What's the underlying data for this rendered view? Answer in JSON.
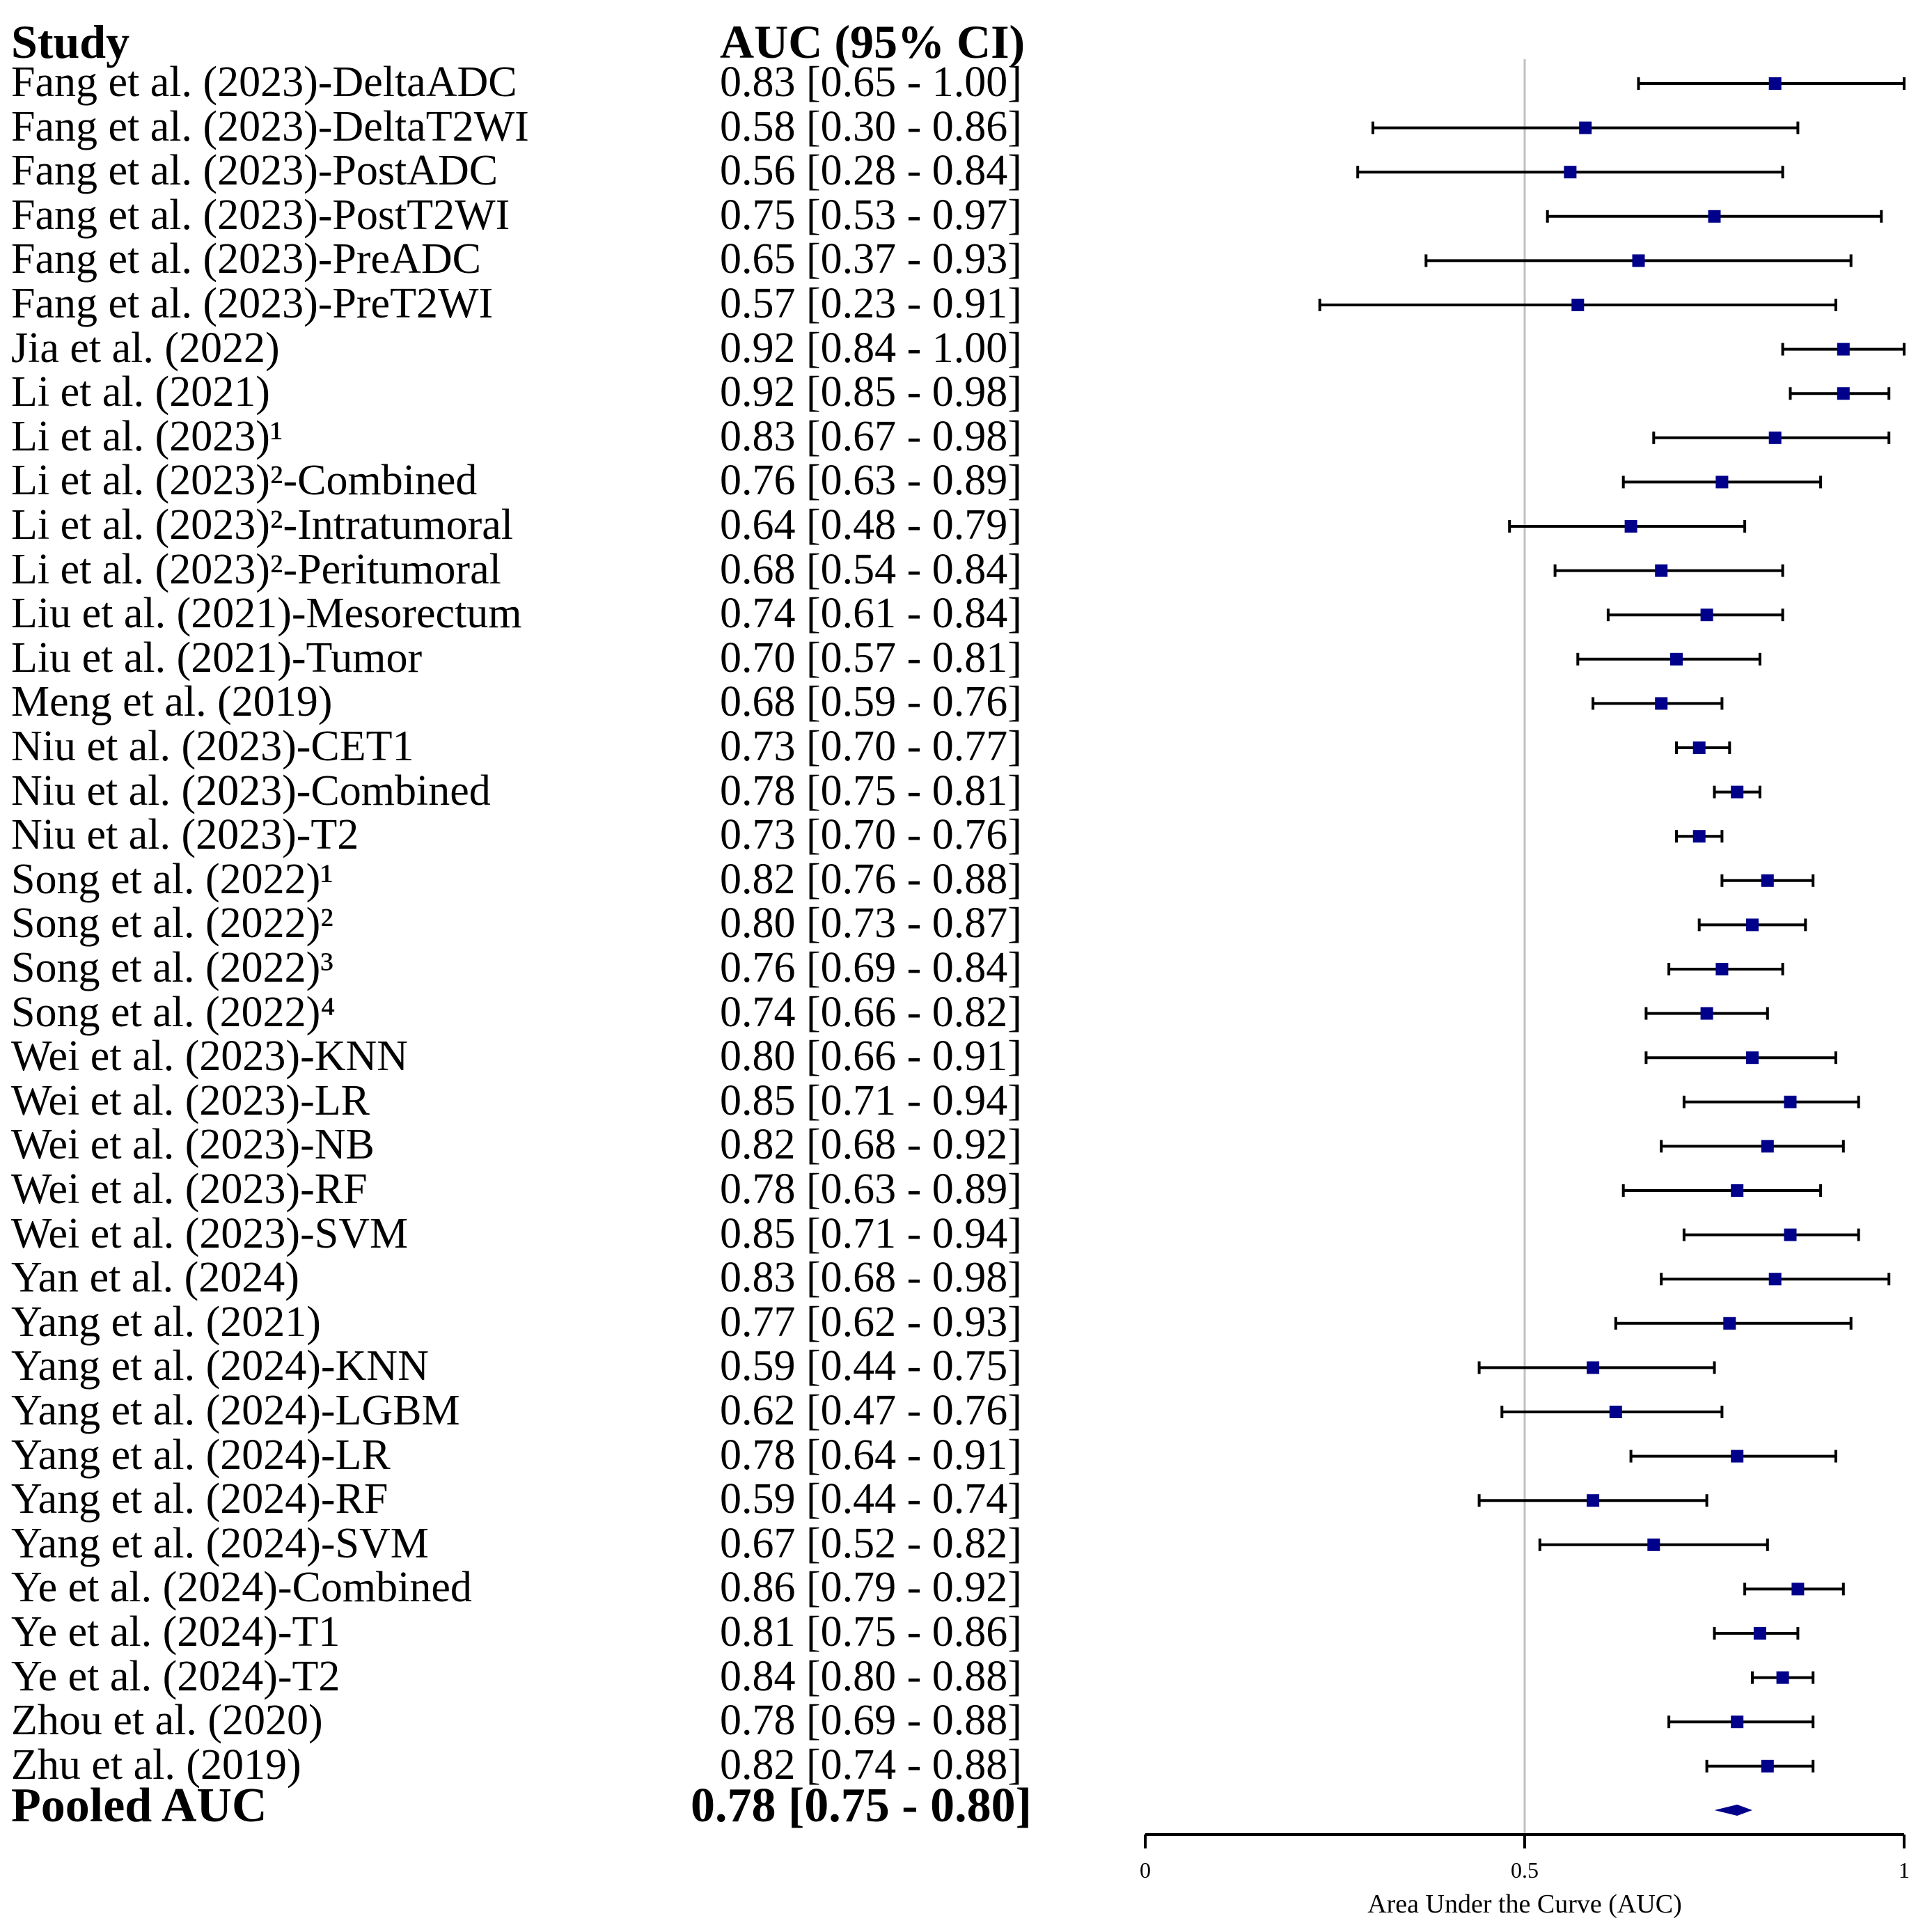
{
  "chart_data": {
    "type": "forest",
    "columns": {
      "study": "Study",
      "auc": "AUC (95% CI)"
    },
    "xlabel": "Area Under the Curve (AUC)",
    "xlim": [
      0,
      1
    ],
    "xticks": [
      "0",
      "0.5",
      "1"
    ],
    "reference_line": 0.5,
    "studies": [
      {
        "label": "Fang et al. (2023)-DeltaADC",
        "auc": 0.83,
        "lo": 0.65,
        "hi": 1.0,
        "text": "0.83 [0.65 - 1.00]"
      },
      {
        "label": "Fang et al. (2023)-DeltaT2WI",
        "auc": 0.58,
        "lo": 0.3,
        "hi": 0.86,
        "text": "0.58 [0.30 - 0.86]"
      },
      {
        "label": "Fang et al. (2023)-PostADC",
        "auc": 0.56,
        "lo": 0.28,
        "hi": 0.84,
        "text": "0.56 [0.28 - 0.84]"
      },
      {
        "label": "Fang et al. (2023)-PostT2WI",
        "auc": 0.75,
        "lo": 0.53,
        "hi": 0.97,
        "text": "0.75 [0.53 - 0.97]"
      },
      {
        "label": "Fang et al. (2023)-PreADC",
        "auc": 0.65,
        "lo": 0.37,
        "hi": 0.93,
        "text": "0.65 [0.37 - 0.93]"
      },
      {
        "label": "Fang et al. (2023)-PreT2WI",
        "auc": 0.57,
        "lo": 0.23,
        "hi": 0.91,
        "text": "0.57 [0.23 - 0.91]"
      },
      {
        "label": "Jia et al. (2022)",
        "auc": 0.92,
        "lo": 0.84,
        "hi": 1.0,
        "text": "0.92 [0.84 - 1.00]"
      },
      {
        "label": "Li et al. (2021)",
        "auc": 0.92,
        "lo": 0.85,
        "hi": 0.98,
        "text": "0.92 [0.85 - 0.98]"
      },
      {
        "label": "Li et al. (2023)¹",
        "auc": 0.83,
        "lo": 0.67,
        "hi": 0.98,
        "text": "0.83 [0.67 - 0.98]"
      },
      {
        "label": "Li et al. (2023)²-Combined",
        "auc": 0.76,
        "lo": 0.63,
        "hi": 0.89,
        "text": "0.76 [0.63 - 0.89]"
      },
      {
        "label": "Li et al. (2023)²-Intratumoral",
        "auc": 0.64,
        "lo": 0.48,
        "hi": 0.79,
        "text": "0.64 [0.48 - 0.79]"
      },
      {
        "label": "Li et al. (2023)²-Peritumoral",
        "auc": 0.68,
        "lo": 0.54,
        "hi": 0.84,
        "text": "0.68 [0.54 - 0.84]"
      },
      {
        "label": "Liu et al. (2021)-Mesorectum",
        "auc": 0.74,
        "lo": 0.61,
        "hi": 0.84,
        "text": "0.74 [0.61 - 0.84]"
      },
      {
        "label": "Liu et al. (2021)-Tumor",
        "auc": 0.7,
        "lo": 0.57,
        "hi": 0.81,
        "text": "0.70 [0.57 - 0.81]"
      },
      {
        "label": "Meng et al. (2019)",
        "auc": 0.68,
        "lo": 0.59,
        "hi": 0.76,
        "text": "0.68 [0.59 - 0.76]"
      },
      {
        "label": "Niu et al. (2023)-CET1",
        "auc": 0.73,
        "lo": 0.7,
        "hi": 0.77,
        "text": "0.73 [0.70 - 0.77]"
      },
      {
        "label": "Niu et al. (2023)-Combined",
        "auc": 0.78,
        "lo": 0.75,
        "hi": 0.81,
        "text": "0.78 [0.75 - 0.81]"
      },
      {
        "label": "Niu et al. (2023)-T2",
        "auc": 0.73,
        "lo": 0.7,
        "hi": 0.76,
        "text": "0.73 [0.70 - 0.76]"
      },
      {
        "label": "Song et al. (2022)¹",
        "auc": 0.82,
        "lo": 0.76,
        "hi": 0.88,
        "text": "0.82 [0.76 - 0.88]"
      },
      {
        "label": "Song et al. (2022)²",
        "auc": 0.8,
        "lo": 0.73,
        "hi": 0.87,
        "text": "0.80 [0.73 - 0.87]"
      },
      {
        "label": "Song et al. (2022)³",
        "auc": 0.76,
        "lo": 0.69,
        "hi": 0.84,
        "text": "0.76 [0.69 - 0.84]"
      },
      {
        "label": "Song et al. (2022)⁴",
        "auc": 0.74,
        "lo": 0.66,
        "hi": 0.82,
        "text": "0.74 [0.66 - 0.82]"
      },
      {
        "label": "Wei et al. (2023)-KNN",
        "auc": 0.8,
        "lo": 0.66,
        "hi": 0.91,
        "text": "0.80 [0.66 - 0.91]"
      },
      {
        "label": "Wei et al. (2023)-LR",
        "auc": 0.85,
        "lo": 0.71,
        "hi": 0.94,
        "text": "0.85 [0.71 - 0.94]"
      },
      {
        "label": "Wei et al. (2023)-NB",
        "auc": 0.82,
        "lo": 0.68,
        "hi": 0.92,
        "text": "0.82 [0.68 - 0.92]"
      },
      {
        "label": "Wei et al. (2023)-RF",
        "auc": 0.78,
        "lo": 0.63,
        "hi": 0.89,
        "text": "0.78 [0.63 - 0.89]"
      },
      {
        "label": "Wei et al. (2023)-SVM",
        "auc": 0.85,
        "lo": 0.71,
        "hi": 0.94,
        "text": "0.85 [0.71 - 0.94]"
      },
      {
        "label": "Yan et al. (2024)",
        "auc": 0.83,
        "lo": 0.68,
        "hi": 0.98,
        "text": "0.83 [0.68 - 0.98]"
      },
      {
        "label": "Yang et al. (2021)",
        "auc": 0.77,
        "lo": 0.62,
        "hi": 0.93,
        "text": "0.77 [0.62 - 0.93]"
      },
      {
        "label": "Yang et al. (2024)-KNN",
        "auc": 0.59,
        "lo": 0.44,
        "hi": 0.75,
        "text": "0.59 [0.44 - 0.75]"
      },
      {
        "label": "Yang et al. (2024)-LGBM",
        "auc": 0.62,
        "lo": 0.47,
        "hi": 0.76,
        "text": "0.62 [0.47 - 0.76]"
      },
      {
        "label": "Yang et al. (2024)-LR",
        "auc": 0.78,
        "lo": 0.64,
        "hi": 0.91,
        "text": "0.78 [0.64 - 0.91]"
      },
      {
        "label": "Yang et al. (2024)-RF",
        "auc": 0.59,
        "lo": 0.44,
        "hi": 0.74,
        "text": "0.59 [0.44 - 0.74]"
      },
      {
        "label": "Yang et al. (2024)-SVM",
        "auc": 0.67,
        "lo": 0.52,
        "hi": 0.82,
        "text": "0.67 [0.52 - 0.82]"
      },
      {
        "label": "Ye et al. (2024)-Combined",
        "auc": 0.86,
        "lo": 0.79,
        "hi": 0.92,
        "text": "0.86 [0.79 - 0.92]"
      },
      {
        "label": "Ye et al. (2024)-T1",
        "auc": 0.81,
        "lo": 0.75,
        "hi": 0.86,
        "text": "0.81 [0.75 - 0.86]"
      },
      {
        "label": "Ye et al. (2024)-T2",
        "auc": 0.84,
        "lo": 0.8,
        "hi": 0.88,
        "text": "0.84 [0.80 - 0.88]"
      },
      {
        "label": "Zhou et al. (2020)",
        "auc": 0.78,
        "lo": 0.69,
        "hi": 0.88,
        "text": "0.78 [0.69 - 0.88]"
      },
      {
        "label": "Zhu et al. (2019)",
        "auc": 0.82,
        "lo": 0.74,
        "hi": 0.88,
        "text": "0.82 [0.74 - 0.88]"
      }
    ],
    "pooled": {
      "label": "Pooled AUC",
      "auc": 0.78,
      "lo": 0.75,
      "hi": 0.8,
      "text": "0.78 [0.75 - 0.80]"
    },
    "colors": {
      "marker": "#00008b",
      "ci": "#000000",
      "refline": "#c0c0c0",
      "axis": "#000000"
    }
  }
}
